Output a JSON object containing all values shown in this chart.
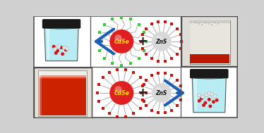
{
  "bg_color": "#e8e8e8",
  "border_color": "#666666",
  "cdse_color": "#e02020",
  "zns_color": "#d8d8d8",
  "cdse_label": "CdSe",
  "zns_label": "ZnS",
  "cdse_label_color": "#f0e000",
  "zns_label_color": "#111111",
  "green_tip_color": "#33cc33",
  "red_tip_color": "#cc1111",
  "ligand_color": "#999999",
  "arrow_color": "#1a5fb4",
  "jar_cap_color": "#1a1a1a",
  "jar_body_light": "#c8f0f8",
  "jar_body_dark": "#88d8f0",
  "red_sphere_color": "#dd1111",
  "white_sphere_color": "#e8e8e8",
  "white_sphere_edge": "#aaaaaa",
  "plus_color": "#222222",
  "divider_color": "#666666",
  "outer_bg": "#d0d0d0"
}
